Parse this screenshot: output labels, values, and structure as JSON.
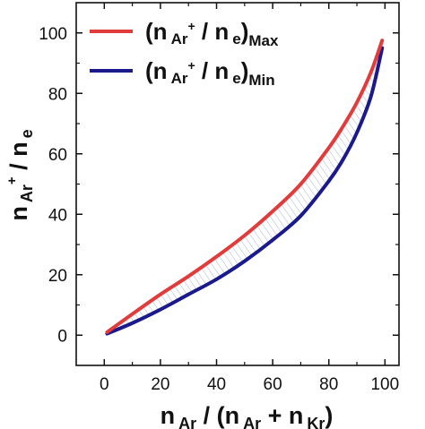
{
  "chart_data": {
    "type": "line",
    "xlim": [
      -10,
      105
    ],
    "ylim": [
      -10,
      110
    ],
    "x_ticks": [
      0,
      20,
      40,
      60,
      80,
      100
    ],
    "y_ticks": [
      0,
      20,
      40,
      60,
      80,
      100
    ],
    "x_tick_labels": [
      "0",
      "20",
      "40",
      "60",
      "80",
      "100"
    ],
    "y_tick_labels": [
      "0",
      "20",
      "40",
      "60",
      "80",
      "100"
    ],
    "xlabel": {
      "base1": "n",
      "sub1": "Ar",
      "mid": " / (",
      "base2": "n",
      "sub2": "Ar",
      "plus": " + ",
      "base3": "n",
      "sub3": "Kr",
      "close": ")"
    },
    "ylabel": {
      "base1": "n",
      "sub1": "Ar",
      "sup1": "+",
      "mid": " / ",
      "base2": "n",
      "sub2": "e"
    },
    "legend_position": "top-left",
    "shaded_region_between_series": true,
    "series": [
      {
        "name": "(n Ar+ / n e)Max",
        "legend": {
          "open": "(",
          "base1": "n",
          "sub1": "Ar",
          "sup1": "+",
          "mid": " / ",
          "base2": "n",
          "sub2": "e",
          "close": ")",
          "tail": "Max"
        },
        "color": "#e03c3c",
        "x": [
          1,
          10,
          20,
          30,
          40,
          50,
          60,
          70,
          80,
          85,
          90,
          95,
          99
        ],
        "y": [
          1,
          7,
          13.5,
          19.5,
          26,
          33,
          41,
          50,
          62,
          69,
          77,
          87,
          97.5
        ]
      },
      {
        "name": "(n Ar+ / n e)Min",
        "legend": {
          "open": "(",
          "base1": "n",
          "sub1": "Ar",
          "sup1": "+",
          "mid": " / ",
          "base2": "n",
          "sub2": "e",
          "close": ")",
          "tail": "Min"
        },
        "color": "#1a1a8c",
        "x": [
          1,
          10,
          20,
          30,
          40,
          50,
          60,
          70,
          80,
          85,
          90,
          95,
          99
        ],
        "y": [
          0.5,
          4,
          8.5,
          13.5,
          18.5,
          24.5,
          31.5,
          39.5,
          51,
          58,
          67,
          79,
          95
        ]
      }
    ]
  }
}
